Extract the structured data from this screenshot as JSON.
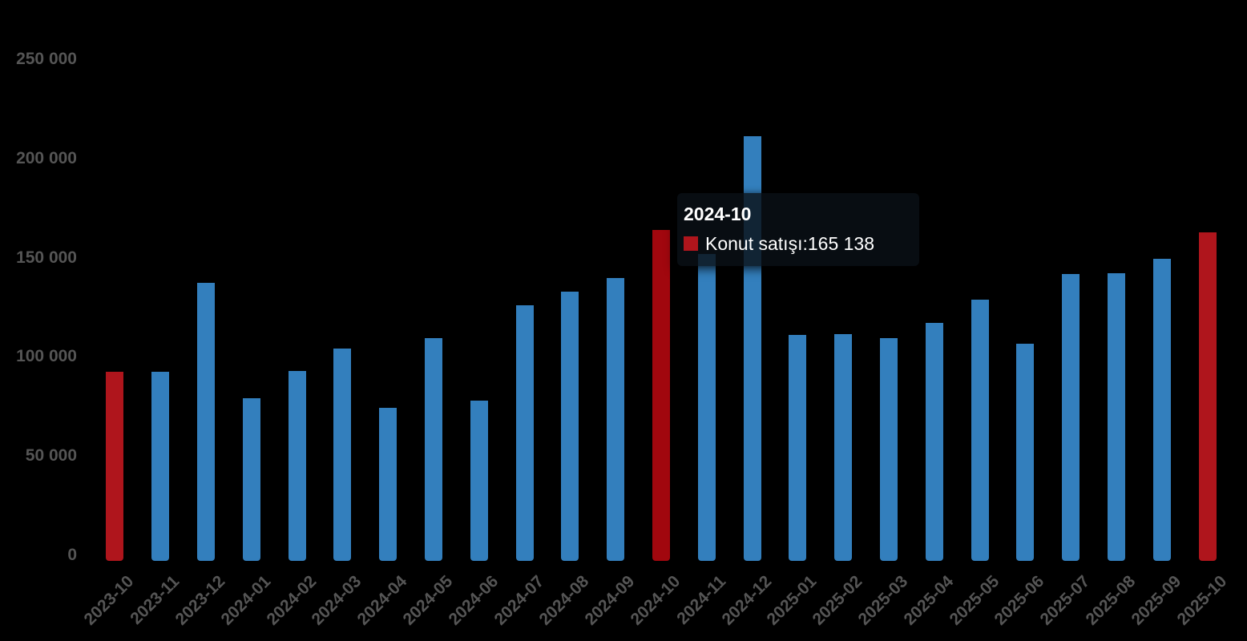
{
  "chart_data": {
    "type": "bar",
    "title": "",
    "xlabel": "",
    "ylabel": "",
    "grid": false,
    "legend_position": "none",
    "background_color": "#000000",
    "axis_text_color": "#555555",
    "ylim": [
      0,
      250000
    ],
    "y_tick_labels": [
      "0",
      "50 000",
      "100 000",
      "150 000",
      "200 000",
      "250 000"
    ],
    "y_tick_values": [
      0,
      50000,
      100000,
      150000,
      200000,
      250000
    ],
    "categories": [
      "2023-10",
      "2023-11",
      "2023-12",
      "2024-01",
      "2024-02",
      "2024-03",
      "2024-04",
      "2024-05",
      "2024-06",
      "2024-07",
      "2024-08",
      "2024-09",
      "2024-10",
      "2024-11",
      "2024-12",
      "2025-01",
      "2025-02",
      "2025-03",
      "2025-04",
      "2025-05",
      "2025-06",
      "2025-07",
      "2025-08",
      "2025-09",
      "2025-10"
    ],
    "series": [
      {
        "name": "Konut satışı",
        "values": [
          93761,
          93514,
          138577,
          80308,
          93902,
          105394,
          75569,
          110588,
          79313,
          127088,
          134155,
          140919,
          165138,
          153014,
          212637,
          112173,
          112818,
          110795,
          118359,
          130025,
          107723,
          142858,
          143319,
          150738,
          164000
        ]
      }
    ],
    "point_styles": [
      "october",
      "blue",
      "blue",
      "blue",
      "blue",
      "blue",
      "blue",
      "blue",
      "blue",
      "blue",
      "blue",
      "blue",
      "october-hovered",
      "blue",
      "blue",
      "blue",
      "blue",
      "blue",
      "blue",
      "blue",
      "blue",
      "blue",
      "blue",
      "blue",
      "october"
    ],
    "colors": {
      "blue": "#337fbd",
      "october": "#af151c",
      "october-hovered": "#a1070e"
    },
    "hovered_category": "2024-10"
  },
  "tooltip": {
    "title": "2024-10",
    "series_label": "Konut satışı",
    "separator": ": ",
    "value": "165 138",
    "marker_color": "#af151c"
  }
}
